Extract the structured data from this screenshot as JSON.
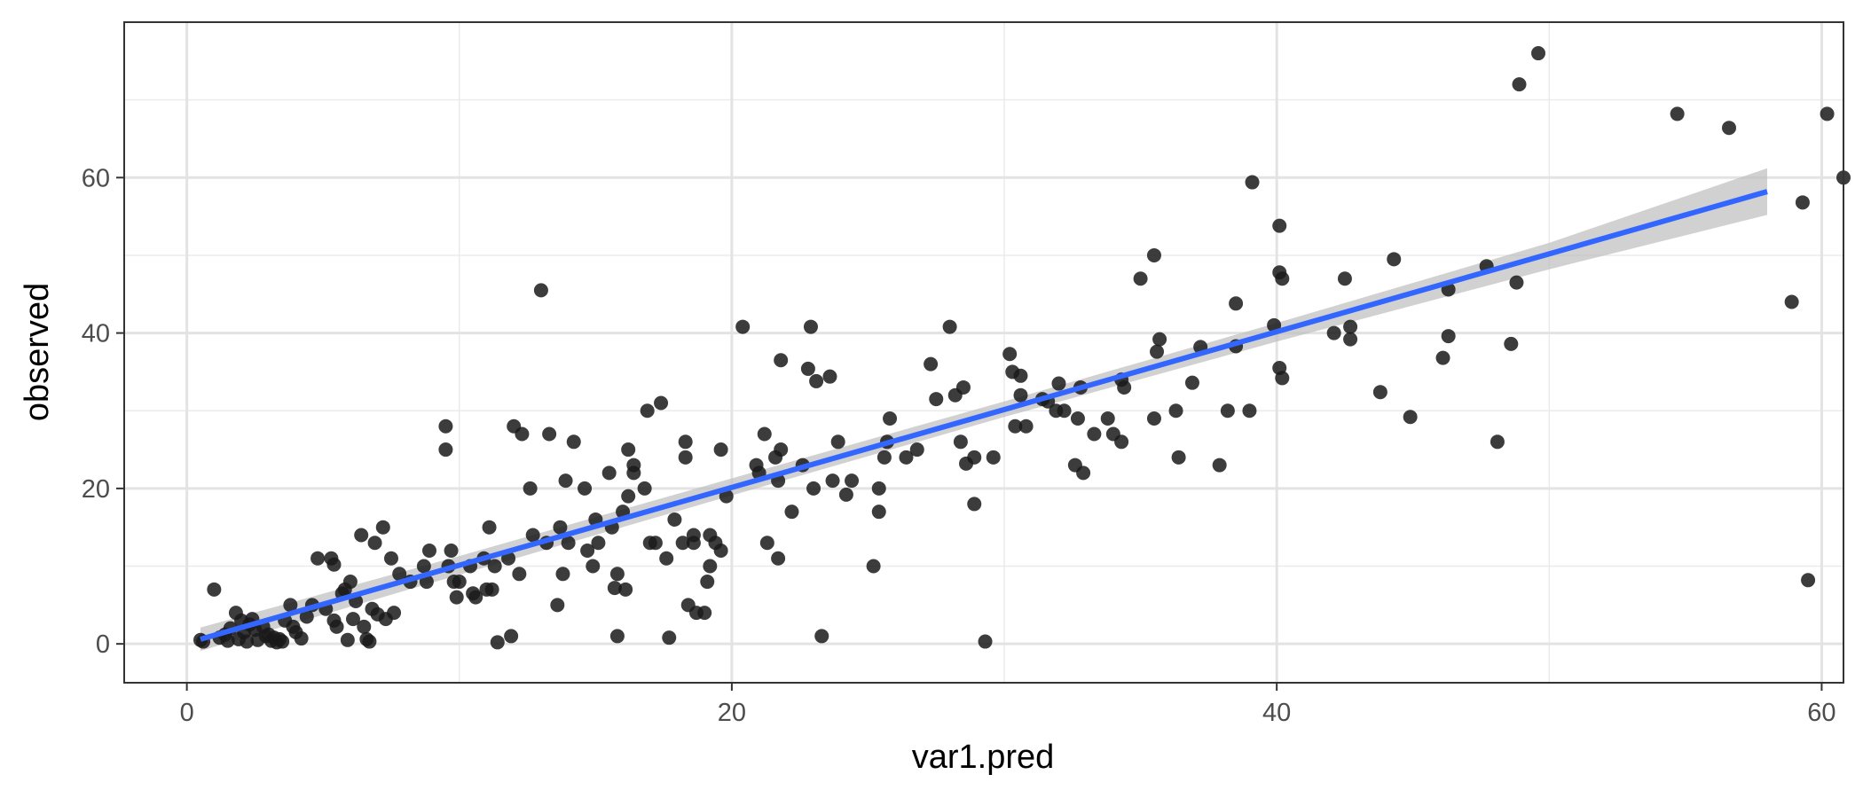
{
  "chart_data": {
    "type": "scatter",
    "title": "",
    "xlabel": "var1.pred",
    "ylabel": "observed",
    "xlim": [
      -2.3,
      60.8
    ],
    "ylim": [
      -5,
      80
    ],
    "x_ticks": [
      0,
      20,
      40,
      60
    ],
    "y_ticks": [
      0,
      20,
      40,
      60
    ],
    "x_tick_labels": [
      "0",
      "20",
      "40",
      "60"
    ],
    "y_tick_labels": [
      "0",
      "20",
      "40",
      "60"
    ],
    "grid": true,
    "point_color": "#1a1a1a",
    "line_color": "#3366ff",
    "band_color": "#bdbdbd",
    "fit_line": {
      "x": [
        0.5,
        58
      ],
      "y": [
        0.6,
        58.2
      ]
    },
    "confidence_band": {
      "x": [
        0.5,
        10,
        20,
        30,
        40,
        50,
        58
      ],
      "lower": [
        -0.9,
        8.9,
        19.1,
        29.2,
        38.9,
        48.2,
        55.2
      ],
      "upper": [
        2.1,
        11.3,
        21.3,
        31.2,
        41.3,
        51.6,
        61.2
      ]
    },
    "points": [
      [
        0.5,
        0.5
      ],
      [
        0.6,
        0.3
      ],
      [
        1,
        7
      ],
      [
        1.2,
        0.8
      ],
      [
        1.4,
        1.2
      ],
      [
        1.5,
        0.4
      ],
      [
        1.6,
        2
      ],
      [
        1.8,
        4
      ],
      [
        1.9,
        0.6
      ],
      [
        2,
        3
      ],
      [
        2.1,
        1.5
      ],
      [
        2.2,
        0.3
      ],
      [
        2.3,
        2.5
      ],
      [
        2.4,
        3.2
      ],
      [
        2.5,
        1.8
      ],
      [
        2.6,
        0.5
      ],
      [
        2.8,
        2.2
      ],
      [
        2.9,
        1
      ],
      [
        3,
        1.2
      ],
      [
        3.1,
        0.4
      ],
      [
        3.2,
        0.8
      ],
      [
        3.3,
        0.2
      ],
      [
        3.4,
        0.6
      ],
      [
        3.5,
        0.3
      ],
      [
        3.6,
        3
      ],
      [
        3.8,
        5
      ],
      [
        3.9,
        2.2
      ],
      [
        4,
        1.5
      ],
      [
        4.2,
        0.7
      ],
      [
        4.4,
        3.5
      ],
      [
        4.6,
        5
      ],
      [
        4.8,
        11
      ],
      [
        5.1,
        4.5
      ],
      [
        5.3,
        11
      ],
      [
        5.4,
        10.2
      ],
      [
        5.4,
        3
      ],
      [
        5.5,
        2.2
      ],
      [
        5.7,
        6.5
      ],
      [
        5.8,
        7
      ],
      [
        5.9,
        0.5
      ],
      [
        6,
        8
      ],
      [
        6.1,
        3.2
      ],
      [
        6.2,
        5.5
      ],
      [
        6.4,
        14
      ],
      [
        6.5,
        2.2
      ],
      [
        6.6,
        0.6
      ],
      [
        6.7,
        0.3
      ],
      [
        6.8,
        4.5
      ],
      [
        6.9,
        13
      ],
      [
        7,
        3.8
      ],
      [
        7.2,
        15
      ],
      [
        7.3,
        3.2
      ],
      [
        7.5,
        11
      ],
      [
        7.6,
        4
      ],
      [
        7.8,
        9
      ],
      [
        8.2,
        8
      ],
      [
        8.7,
        10
      ],
      [
        8.8,
        8
      ],
      [
        8.9,
        12
      ],
      [
        9.5,
        28
      ],
      [
        9.5,
        25
      ],
      [
        9.6,
        10
      ],
      [
        9.7,
        12
      ],
      [
        9.8,
        8
      ],
      [
        9.9,
        6
      ],
      [
        10,
        8
      ],
      [
        10.4,
        10
      ],
      [
        10.5,
        6.5
      ],
      [
        10.6,
        6
      ],
      [
        10.9,
        11
      ],
      [
        11,
        7
      ],
      [
        11.1,
        15
      ],
      [
        11.2,
        7
      ],
      [
        11.3,
        10
      ],
      [
        11.4,
        0.2
      ],
      [
        11.8,
        11
      ],
      [
        11.9,
        1
      ],
      [
        12,
        28
      ],
      [
        12.2,
        9
      ],
      [
        12.3,
        27
      ],
      [
        12.6,
        20
      ],
      [
        12.7,
        14
      ],
      [
        13,
        45.5
      ],
      [
        13.2,
        13
      ],
      [
        13.3,
        27
      ],
      [
        13.6,
        5
      ],
      [
        13.7,
        15
      ],
      [
        13.8,
        9
      ],
      [
        13.9,
        21
      ],
      [
        14,
        13
      ],
      [
        14.2,
        26
      ],
      [
        14.6,
        20
      ],
      [
        14.7,
        12
      ],
      [
        14.9,
        10
      ],
      [
        15,
        16
      ],
      [
        15.1,
        13
      ],
      [
        15.5,
        22
      ],
      [
        15.6,
        15
      ],
      [
        15.7,
        7.2
      ],
      [
        15.8,
        9
      ],
      [
        15.8,
        1
      ],
      [
        16,
        17
      ],
      [
        16.1,
        7
      ],
      [
        16.2,
        19
      ],
      [
        16.2,
        25
      ],
      [
        16.4,
        22
      ],
      [
        16.4,
        23
      ],
      [
        16.8,
        20
      ],
      [
        16.9,
        30
      ],
      [
        17,
        13
      ],
      [
        17.2,
        13
      ],
      [
        17.4,
        31
      ],
      [
        17.6,
        11
      ],
      [
        17.7,
        0.8
      ],
      [
        17.9,
        16
      ],
      [
        18.2,
        13
      ],
      [
        18.3,
        26
      ],
      [
        18.3,
        24
      ],
      [
        18.4,
        5
      ],
      [
        18.6,
        13
      ],
      [
        18.6,
        14
      ],
      [
        18.7,
        4
      ],
      [
        19,
        4
      ],
      [
        19.1,
        8
      ],
      [
        19.2,
        14
      ],
      [
        19.2,
        10
      ],
      [
        19.4,
        13
      ],
      [
        19.6,
        12
      ],
      [
        19.6,
        25
      ],
      [
        19.8,
        19
      ],
      [
        20.4,
        40.8
      ],
      [
        20.9,
        23
      ],
      [
        21,
        22
      ],
      [
        21.2,
        27
      ],
      [
        21.3,
        13
      ],
      [
        21.6,
        24
      ],
      [
        21.7,
        21
      ],
      [
        21.7,
        11
      ],
      [
        21.8,
        25
      ],
      [
        21.8,
        36.5
      ],
      [
        22.2,
        17
      ],
      [
        22.6,
        23
      ],
      [
        22.8,
        35.4
      ],
      [
        22.9,
        40.8
      ],
      [
        23,
        20
      ],
      [
        23.1,
        33.8
      ],
      [
        23.3,
        1
      ],
      [
        23.6,
        34.4
      ],
      [
        23.7,
        21
      ],
      [
        23.9,
        26
      ],
      [
        24.2,
        19.2
      ],
      [
        24.4,
        21
      ],
      [
        25.2,
        10
      ],
      [
        25.4,
        20
      ],
      [
        25.4,
        17
      ],
      [
        25.6,
        24
      ],
      [
        25.7,
        26
      ],
      [
        25.8,
        29
      ],
      [
        26.4,
        24
      ],
      [
        26.8,
        25
      ],
      [
        27.3,
        36
      ],
      [
        27.5,
        31.5
      ],
      [
        28,
        40.8
      ],
      [
        28.2,
        32
      ],
      [
        28.4,
        26
      ],
      [
        28.5,
        33
      ],
      [
        28.6,
        23.2
      ],
      [
        28.9,
        18
      ],
      [
        28.9,
        24
      ],
      [
        29.3,
        0.3
      ],
      [
        29.6,
        24
      ],
      [
        30.2,
        37.3
      ],
      [
        30.3,
        35
      ],
      [
        30.4,
        28
      ],
      [
        30.6,
        34.5
      ],
      [
        30.6,
        32
      ],
      [
        30.8,
        28
      ],
      [
        31.4,
        31.5
      ],
      [
        31.6,
        31.2
      ],
      [
        31.9,
        30
      ],
      [
        32,
        33.5
      ],
      [
        32.2,
        30
      ],
      [
        32.6,
        23
      ],
      [
        32.7,
        29
      ],
      [
        32.8,
        33
      ],
      [
        32.9,
        22
      ],
      [
        33.3,
        27
      ],
      [
        33.8,
        29
      ],
      [
        34,
        27
      ],
      [
        34.3,
        26
      ],
      [
        34.3,
        34
      ],
      [
        34.4,
        33
      ],
      [
        35,
        47
      ],
      [
        35.5,
        29
      ],
      [
        35.5,
        50
      ],
      [
        35.6,
        37.6
      ],
      [
        35.7,
        39.2
      ],
      [
        36.3,
        30
      ],
      [
        36.4,
        24
      ],
      [
        36.9,
        33.6
      ],
      [
        37.2,
        38.2
      ],
      [
        37.9,
        23
      ],
      [
        38.2,
        30
      ],
      [
        38.5,
        38.3
      ],
      [
        38.5,
        43.8
      ],
      [
        39,
        30
      ],
      [
        39.1,
        59.4
      ],
      [
        39.9,
        41
      ],
      [
        40.1,
        53.8
      ],
      [
        40.1,
        35.5
      ],
      [
        40.1,
        47.8
      ],
      [
        40.2,
        47
      ],
      [
        40.2,
        34.2
      ],
      [
        42.1,
        40
      ],
      [
        42.5,
        47
      ],
      [
        42.7,
        39.2
      ],
      [
        42.7,
        40.8
      ],
      [
        43.8,
        32.4
      ],
      [
        44.3,
        49.5
      ],
      [
        44.9,
        29.2
      ],
      [
        46.1,
        36.8
      ],
      [
        46.3,
        39.6
      ],
      [
        46.3,
        45.6
      ],
      [
        47.7,
        48.6
      ],
      [
        48.1,
        26
      ],
      [
        48.6,
        38.6
      ],
      [
        48.8,
        46.5
      ],
      [
        48.9,
        72
      ],
      [
        49.6,
        76
      ],
      [
        54.7,
        68.2
      ],
      [
        56.6,
        66.4
      ],
      [
        58.9,
        44
      ],
      [
        59.3,
        56.8
      ],
      [
        59.5,
        8.2
      ],
      [
        60.2,
        68.2
      ],
      [
        60.8,
        60
      ]
    ]
  }
}
